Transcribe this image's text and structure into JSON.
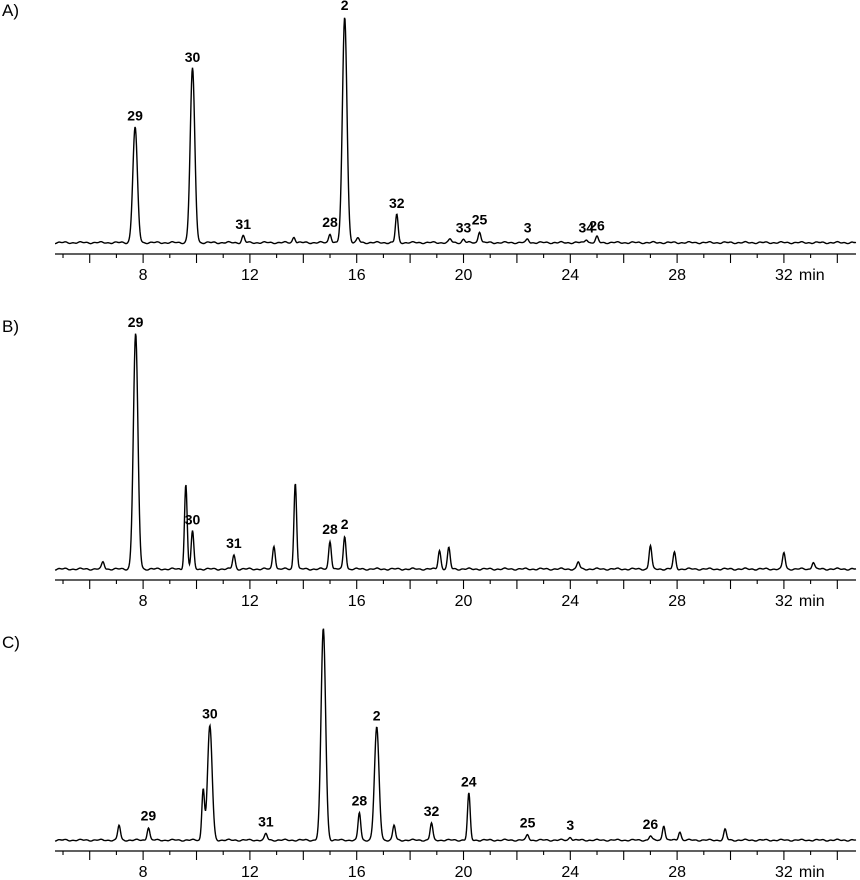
{
  "chart_data": [
    {
      "type": "line",
      "panel_label": "A)",
      "xlabel": "min",
      "xlim": [
        4.7,
        34.7
      ],
      "ylim": [
        0,
        100
      ],
      "grid": false,
      "x_ticks": [
        8,
        12,
        16,
        20,
        24,
        28,
        32
      ],
      "tick_labels": [
        "8",
        "12",
        "16",
        "20",
        "24",
        "28",
        "32"
      ],
      "baseline": 1.5,
      "peaks": [
        {
          "label": "29",
          "rt": 7.7,
          "height": 51
        },
        {
          "label": "30",
          "rt": 9.85,
          "height": 77
        },
        {
          "label": "31",
          "rt": 11.75,
          "height": 3
        },
        {
          "label": "28",
          "rt": 15.0,
          "height": 4
        },
        {
          "label": "2",
          "rt": 15.55,
          "height": 100
        },
        {
          "label": "32",
          "rt": 17.5,
          "height": 12.5
        },
        {
          "label": "33",
          "rt": 20.0,
          "height": 1.5
        },
        {
          "label": "25",
          "rt": 20.6,
          "height": 5
        },
        {
          "label": "3",
          "rt": 22.4,
          "height": 1.5
        },
        {
          "label": "34",
          "rt": 24.6,
          "height": 1.5
        },
        {
          "label": "26",
          "rt": 25.0,
          "height": 2.5
        },
        {
          "label": "",
          "rt": 13.65,
          "height": 2.5
        },
        {
          "label": "",
          "rt": 16.05,
          "height": 2
        },
        {
          "label": "",
          "rt": 19.5,
          "height": 1.5
        }
      ]
    },
    {
      "type": "line",
      "panel_label": "B)",
      "xlabel": "min",
      "xlim": [
        4.7,
        34.7
      ],
      "ylim": [
        0,
        100
      ],
      "grid": false,
      "x_ticks": [
        8,
        12,
        16,
        20,
        24,
        28,
        32
      ],
      "tick_labels": [
        "8",
        "12",
        "16",
        "20",
        "24",
        "28",
        "32"
      ],
      "baseline": 1,
      "peaks": [
        {
          "label": "29",
          "rt": 7.72,
          "height": 100
        },
        {
          "label": "30",
          "rt": 9.85,
          "height": 16
        },
        {
          "label": "31",
          "rt": 11.4,
          "height": 6
        },
        {
          "label": "28",
          "rt": 15.0,
          "height": 12
        },
        {
          "label": "2",
          "rt": 15.55,
          "height": 14
        },
        {
          "label": "",
          "rt": 6.5,
          "height": 3
        },
        {
          "label": "",
          "rt": 9.6,
          "height": 36
        },
        {
          "label": "",
          "rt": 12.9,
          "height": 10
        },
        {
          "label": "",
          "rt": 13.7,
          "height": 37
        },
        {
          "label": "",
          "rt": 19.1,
          "height": 8
        },
        {
          "label": "",
          "rt": 19.45,
          "height": 9
        },
        {
          "label": "",
          "rt": 24.3,
          "height": 3
        },
        {
          "label": "",
          "rt": 27.0,
          "height": 10
        },
        {
          "label": "",
          "rt": 27.9,
          "height": 7
        },
        {
          "label": "",
          "rt": 32.0,
          "height": 7
        },
        {
          "label": "",
          "rt": 33.1,
          "height": 3
        }
      ]
    },
    {
      "type": "line",
      "panel_label": "C)",
      "xlabel": "min",
      "xlim": [
        4.7,
        34.7
      ],
      "ylim": [
        0,
        100
      ],
      "grid": false,
      "x_ticks": [
        8,
        12,
        16,
        20,
        24,
        28,
        32
      ],
      "tick_labels": [
        "8",
        "12",
        "16",
        "20",
        "24",
        "28",
        "32"
      ],
      "baseline": 1,
      "peaks": [
        {
          "label": "29",
          "rt": 8.2,
          "height": 6
        },
        {
          "label": "30",
          "rt": 10.5,
          "height": 54
        },
        {
          "label": "31",
          "rt": 12.6,
          "height": 3
        },
        {
          "label": "28",
          "rt": 16.1,
          "height": 13
        },
        {
          "label": "2",
          "rt": 16.75,
          "height": 53
        },
        {
          "label": "32",
          "rt": 18.8,
          "height": 8
        },
        {
          "label": "24",
          "rt": 20.2,
          "height": 22
        },
        {
          "label": "25",
          "rt": 22.4,
          "height": 2.5
        },
        {
          "label": "3",
          "rt": 24.0,
          "height": 1.5
        },
        {
          "label": "26",
          "rt": 27.0,
          "height": 2
        },
        {
          "label": "",
          "rt": 7.1,
          "height": 7
        },
        {
          "label": "",
          "rt": 10.25,
          "height": 24
        },
        {
          "label": "",
          "rt": 14.75,
          "height": 100
        },
        {
          "label": "",
          "rt": 17.4,
          "height": 7
        },
        {
          "label": "",
          "rt": 27.5,
          "height": 7
        },
        {
          "label": "",
          "rt": 28.1,
          "height": 4
        },
        {
          "label": "",
          "rt": 29.8,
          "height": 5
        }
      ]
    }
  ]
}
